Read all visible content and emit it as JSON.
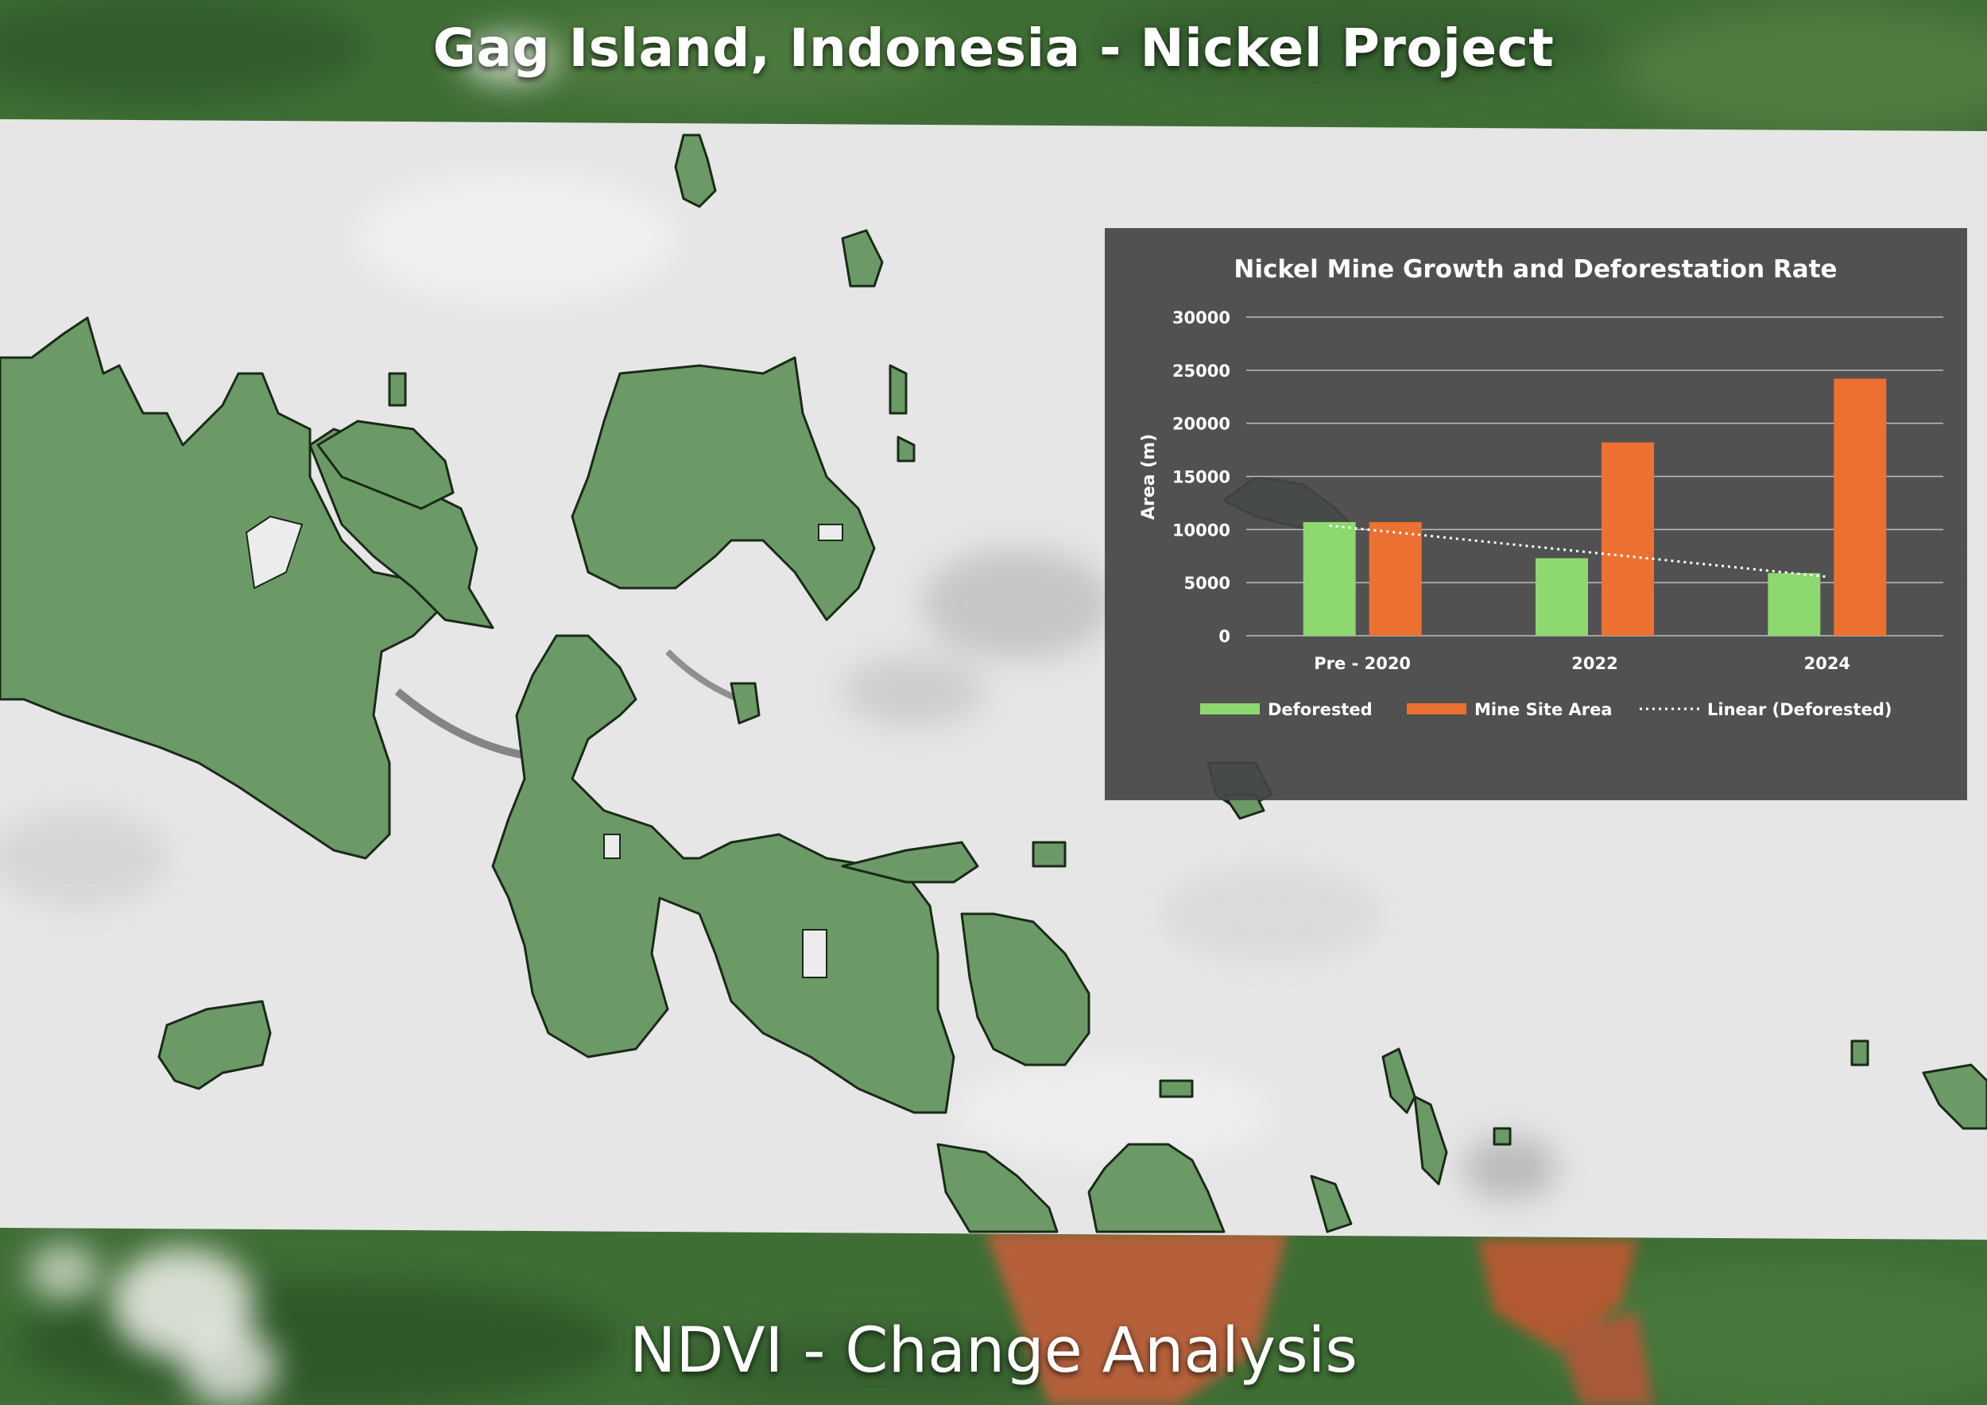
{
  "page": {
    "title": "Gag Island, Indonesia - Nickel Project",
    "subtitle": "NDVI  - Change Analysis"
  },
  "colors": {
    "vegetation_loss": "#6b9a66",
    "ndvi_background": "#e6e6e6",
    "satellite_forest": "#3f6e35",
    "mine_soil": "#b5603a",
    "deforested_bar": "#8dd86f",
    "mine_bar": "#ec7130",
    "chart_panel": "#444444"
  },
  "icons": {
    "cloud": "cloud-icon"
  },
  "chart_data": {
    "type": "bar",
    "title": "Nickel Mine Growth and Deforestation Rate",
    "ylabel": "Area (m)",
    "xlabel": "",
    "categories": [
      "Pre - 2020",
      "2022",
      "2024"
    ],
    "series": [
      {
        "name": "Deforested",
        "values": [
          10700,
          7300,
          5900
        ],
        "color": "#8dd86f"
      },
      {
        "name": "Mine Site Area",
        "values": [
          10700,
          18200,
          24200
        ],
        "color": "#ec7130"
      }
    ],
    "trendline": {
      "name": "Linear (Deforested)",
      "of": "Deforested",
      "style": "dotted"
    },
    "ylim": [
      0,
      30000
    ],
    "yticks": [
      0,
      5000,
      10000,
      15000,
      20000,
      25000,
      30000
    ],
    "grid": true,
    "legend": "bottom"
  }
}
